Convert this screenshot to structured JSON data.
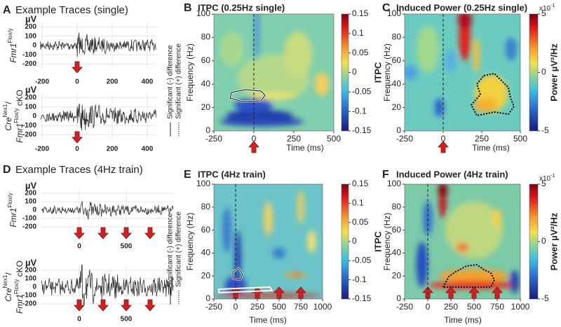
{
  "panels": [
    {
      "letter": "A",
      "type": "traces",
      "title": "Example Traces (single)",
      "xlim": [
        -210,
        450
      ],
      "xticks": [
        -200,
        0,
        200,
        400
      ],
      "traces": [
        {
          "ylabel": [
            {
              "main": "Fmr1",
              "sup": "Flox/y"
            }
          ],
          "unit": "µV",
          "ylim": [
            -250,
            250
          ],
          "yticks": [
            200,
            100,
            0,
            -100,
            -200
          ]
        },
        {
          "ylabel": [
            {
              "main": "Cre",
              "sup": "Nex1",
              "tail": "/"
            },
            {
              "main": "Fmr1",
              "sup": "Flox/y",
              "tail": " cKO"
            }
          ],
          "unit": "µV",
          "ylim": [
            -250,
            250
          ],
          "yticks": [
            200,
            100,
            0,
            -100,
            -200
          ]
        }
      ],
      "legend": [
        "Significant (-) difference",
        "Significant (+) difference"
      ]
    },
    {
      "letter": "B",
      "type": "heatmap",
      "title": "ITPC (0.25Hz single)",
      "xlabel": "Time (ms)",
      "ylabel": "Frequency (Hz)",
      "xlim": [
        -250,
        500
      ],
      "xticks": [
        -250,
        0,
        250,
        500
      ],
      "ylim": [
        0,
        100
      ],
      "yticks": [
        0,
        20,
        40,
        60,
        80,
        100
      ],
      "colorbar": {
        "label": "ITPC",
        "lim": [
          -0.15,
          0.15
        ],
        "ticks": [
          0.15,
          0.1,
          0.05,
          0,
          -0.05,
          -0.1,
          -0.15
        ]
      }
    },
    {
      "letter": "C",
      "type": "heatmap",
      "title": "Induced Power (0.25Hz single)",
      "xlabel": "Time (ms)",
      "ylabel": "Frequency (Hz)",
      "xlim": [
        -250,
        500
      ],
      "xticks": [
        -250,
        0,
        250,
        500
      ],
      "ylim": [
        0,
        100
      ],
      "yticks": [
        0,
        20,
        40,
        60,
        80,
        100
      ],
      "colorbar": {
        "label": "Power µV²/Hz",
        "lim": [
          -5,
          5
        ],
        "ticks": [
          5,
          0,
          -5
        ],
        "scale": "x10",
        "scale_exp": "-1"
      }
    },
    {
      "letter": "D",
      "type": "traces",
      "title": "Example Traces (4Hz train)",
      "xlim": [
        -400,
        1000
      ],
      "xticks": [
        0,
        500
      ],
      "traces": [
        {
          "ylabel": [
            {
              "main": "Fmr1",
              "sup": "Flox/y"
            }
          ],
          "unit": "µV",
          "ylim": [
            -250,
            250
          ],
          "yticks": [
            200,
            100,
            0,
            -100,
            -200
          ]
        },
        {
          "ylabel": [
            {
              "main": "Cre",
              "sup": "Nex1",
              "tail": "/"
            },
            {
              "main": "Fmr1",
              "sup": "Flox/y",
              "tail": " cKO"
            }
          ],
          "unit": "µV",
          "ylim": [
            -250,
            250
          ],
          "yticks": [
            200,
            100,
            0,
            -100,
            -200
          ]
        }
      ],
      "legend": [
        "Significant (-) difference",
        "Significant (+) difference"
      ]
    },
    {
      "letter": "E",
      "type": "heatmap",
      "title": "ITPC (4Hz train)",
      "xlabel": "Time (ms)",
      "ylabel": "Frequency (Hz)",
      "xlim": [
        -250,
        1000
      ],
      "xticks": [
        -250,
        0,
        250,
        500,
        750,
        1000
      ],
      "ylim": [
        0,
        100
      ],
      "yticks": [
        0,
        20,
        40,
        60,
        80,
        100
      ],
      "colorbar": {
        "label": "ITPC",
        "lim": [
          -0.15,
          0.15
        ],
        "ticks": [
          0.15,
          0.1,
          0.05,
          0,
          -0.05,
          -0.1,
          -0.15
        ]
      }
    },
    {
      "letter": "F",
      "type": "heatmap",
      "title": "Induced Power (4Hz train)",
      "xlabel": "Time (ms)",
      "ylabel": "Frequency (Hz)",
      "xlim": [
        -250,
        1000
      ],
      "xticks": [
        -250,
        0,
        250,
        500,
        750,
        1000
      ],
      "ylim": [
        0,
        100
      ],
      "yticks": [
        0,
        20,
        40,
        60,
        80,
        100
      ],
      "colorbar": {
        "label": "Power µV²/Hz",
        "lim": [
          -5,
          5
        ],
        "ticks": [
          5,
          0,
          -5
        ],
        "scale": "x10",
        "scale_exp": "-1"
      }
    }
  ]
}
